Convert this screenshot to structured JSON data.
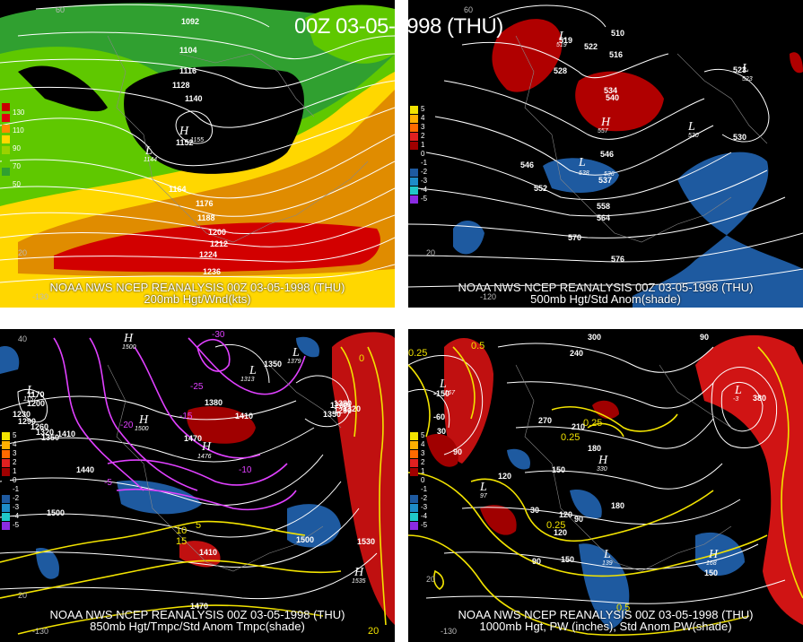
{
  "title": "00Z 03-05-1998 (THU)",
  "panels": [
    {
      "caption_top": "NOAA NWS NCEP REANALYSIS 00Z 03-05-1998 (THU)",
      "caption_bottom": "200mb Hgt/Wnd(kts)",
      "legend": [
        "130",
        "110",
        "90",
        "70",
        "50"
      ],
      "legend_colors": [
        "#c80000",
        "#e0000f",
        "#ff8c00",
        "#ffd700",
        "#9bd200",
        "#5fc800",
        "#30a030"
      ],
      "contour_labels": [
        "1092",
        "1104",
        "1116",
        "1128",
        "1140",
        "1152",
        "1164",
        "1176",
        "1188",
        "1200",
        "1212",
        "1224",
        "1236"
      ],
      "lat_labels": [
        "60",
        "20"
      ],
      "lon_labels": [
        "-130"
      ],
      "highs": [
        {
          "label": "H",
          "value": "1155"
        }
      ],
      "lows": [
        {
          "label": "L",
          "value": "1144"
        }
      ]
    },
    {
      "caption_top": "NOAA NWS NCEP REANALYSIS 00Z 03-05-1998 (THU)",
      "caption_bottom": "500mb Hgt/Std Anom(shade)",
      "legend": [
        "5",
        "4",
        "3",
        "2",
        "1",
        "0",
        "-1",
        "-2",
        "-3",
        "-4",
        "-5"
      ],
      "legend_colors": [
        "#f2e300",
        "#ffb000",
        "#ff6a00",
        "#e02020",
        "#a00000",
        "#000000",
        "#000000",
        "#1e5aa0",
        "#1e8cc8",
        "#20c8c8",
        "#8a2be2"
      ],
      "contour_labels": [
        "519",
        "522",
        "528",
        "510",
        "516",
        "534",
        "540",
        "546",
        "552",
        "558",
        "564",
        "570",
        "576",
        "523",
        "530",
        "537",
        "546"
      ],
      "lat_labels": [
        "60",
        "20"
      ],
      "lon_labels": [
        "-120"
      ],
      "highs": [
        {
          "label": "H",
          "value": "557"
        }
      ],
      "lows": [
        {
          "label": "L",
          "value": "519"
        },
        {
          "label": "L",
          "value": "538"
        },
        {
          "label": "L",
          "value": "523"
        },
        {
          "label": "L",
          "value": "530"
        },
        {
          "label": "L",
          "value": "536"
        }
      ]
    },
    {
      "caption_top": "NOAA NWS NCEP REANALYSIS 00Z 03-05-1998 (THU)",
      "caption_bottom": "850mb Hgt/Tmpc/Std Anom Tmpc(shade)",
      "legend": [
        "5",
        "4",
        "3",
        "2",
        "1",
        "0",
        "-1",
        "-2",
        "-3",
        "-4",
        "-5"
      ],
      "legend_colors": [
        "#f2e300",
        "#ffb000",
        "#ff6a00",
        "#e02020",
        "#a00000",
        "#000000",
        "#000000",
        "#1e5aa0",
        "#1e8cc8",
        "#20c8c8",
        "#8a2be2"
      ],
      "contour_labels": [
        "1170",
        "1200",
        "1230",
        "1290",
        "1260",
        "1320",
        "1350",
        "1410",
        "1380",
        "1350",
        "1410",
        "1470",
        "1440",
        "1500",
        "1500",
        "1530",
        "1410",
        "1470",
        "1380",
        "1350",
        "1290",
        "1320",
        "1260"
      ],
      "temp_labels": [
        "-30",
        "-25",
        "-20",
        "-15",
        "-10",
        "-5"
      ],
      "warm_labels": [
        "10",
        "15",
        "20",
        "5",
        "0"
      ],
      "lat_labels": [
        "40",
        "20"
      ],
      "lon_labels": [
        "-130"
      ],
      "highs": [
        {
          "label": "H",
          "value": "1500"
        },
        {
          "label": "H",
          "value": "1476"
        },
        {
          "label": "H",
          "value": "1535"
        },
        {
          "label": "H",
          "value": "1500"
        }
      ],
      "lows": [
        {
          "label": "L",
          "value": "1313"
        },
        {
          "label": "L",
          "value": "1379"
        },
        {
          "label": "L",
          "value": "1157"
        }
      ]
    },
    {
      "caption_top": "NOAA NWS NCEP REANALYSIS 00Z 03-05-1998 (THU)",
      "caption_bottom": "1000mb Hgt, PW (inches), Std Anom PW(shade)",
      "legend": [
        "5",
        "4",
        "3",
        "2",
        "1",
        "0",
        "-1",
        "-2",
        "-3",
        "-4",
        "-5"
      ],
      "legend_colors": [
        "#f2e300",
        "#ffb000",
        "#ff6a00",
        "#e02020",
        "#a00000",
        "#000000",
        "#000000",
        "#1e5aa0",
        "#1e8cc8",
        "#20c8c8",
        "#8a2be2"
      ],
      "contour_labels": [
        "300",
        "240",
        "90",
        "-150",
        "-60",
        "30",
        "90",
        "270",
        "210",
        "180",
        "150",
        "120",
        "90",
        "120",
        "30",
        "150",
        "90",
        "120",
        "180",
        "380",
        "150"
      ],
      "pw_labels": [
        "0.25",
        "0.5",
        "0.25",
        "0.25",
        "0.25",
        "0.5"
      ],
      "lat_labels": [
        "20"
      ],
      "lon_labels": [
        "-130"
      ],
      "highs": [
        {
          "label": "H",
          "value": "330"
        },
        {
          "label": "H",
          "value": "168"
        }
      ],
      "lows": [
        {
          "label": "L",
          "value": "-167"
        },
        {
          "label": "L",
          "value": "97"
        },
        {
          "label": "L",
          "value": "139"
        },
        {
          "label": "L",
          "value": "-3"
        }
      ]
    }
  ]
}
